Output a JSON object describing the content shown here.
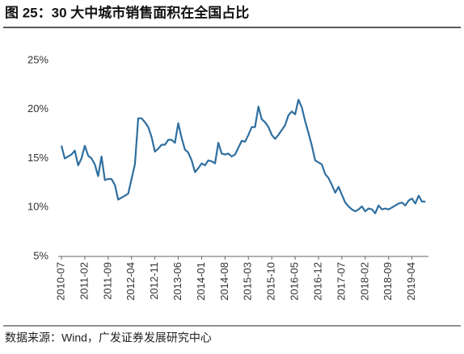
{
  "chart_data": {
    "type": "line",
    "title": "图 25：30 大中城市销售面积在全国占比",
    "source": "数据来源：Wind，广发证券发展研究中心",
    "categories": [
      "2010-07",
      null,
      null,
      null,
      null,
      null,
      null,
      "2011-02",
      null,
      null,
      null,
      null,
      null,
      null,
      "2011-09",
      null,
      null,
      null,
      null,
      null,
      null,
      "2012-04",
      null,
      null,
      null,
      null,
      null,
      null,
      "2012-11",
      null,
      null,
      null,
      null,
      null,
      null,
      "2013-06",
      null,
      null,
      null,
      null,
      null,
      null,
      "2014-01",
      null,
      null,
      null,
      null,
      null,
      null,
      "2014-08",
      null,
      null,
      null,
      null,
      null,
      null,
      "2015-03",
      null,
      null,
      null,
      null,
      null,
      null,
      "2015-10",
      null,
      null,
      null,
      null,
      null,
      null,
      "2016-05",
      null,
      null,
      null,
      null,
      null,
      null,
      "2016-12",
      null,
      null,
      null,
      null,
      null,
      null,
      "2017-07",
      null,
      null,
      null,
      null,
      null,
      null,
      "2018-02",
      null,
      null,
      null,
      null,
      null,
      null,
      "2018-09",
      null,
      null,
      null,
      null,
      null,
      null,
      "2019-04",
      null,
      null,
      null,
      null
    ],
    "series": [
      {
        "color": "#2f6f9f",
        "values": [
          16.3,
          15.0,
          15.2,
          15.4,
          15.8,
          14.3,
          15.0,
          16.3,
          15.3,
          15.0,
          14.4,
          13.2,
          15.2,
          12.8,
          12.9,
          12.9,
          12.3,
          10.8,
          11.0,
          11.2,
          11.4,
          12.9,
          14.4,
          19.1,
          19.1,
          18.7,
          18.2,
          17.2,
          15.7,
          16.0,
          16.4,
          16.4,
          16.9,
          16.9,
          16.6,
          18.6,
          17.1,
          15.9,
          15.6,
          14.8,
          13.6,
          14.0,
          14.5,
          14.3,
          14.8,
          14.7,
          14.5,
          16.6,
          15.5,
          15.4,
          15.5,
          15.2,
          15.4,
          16.1,
          16.8,
          16.7,
          17.4,
          18.2,
          18.2,
          20.3,
          19.0,
          18.7,
          18.2,
          17.4,
          17.0,
          17.4,
          17.9,
          18.4,
          19.4,
          19.8,
          19.5,
          21.0,
          20.2,
          18.8,
          17.6,
          16.3,
          14.8,
          14.6,
          14.4,
          13.4,
          13.0,
          12.3,
          11.5,
          12.1,
          11.3,
          10.5,
          10.1,
          9.8,
          9.6,
          9.8,
          10.1,
          9.6,
          9.9,
          9.8,
          9.4,
          10.2,
          9.8,
          9.9,
          9.8,
          10.0,
          10.2,
          10.4,
          10.5,
          10.2,
          10.7,
          10.9,
          10.4,
          11.2,
          10.6,
          10.6
        ]
      }
    ],
    "ylim": [
      5,
      25
    ],
    "yticks": [
      {
        "value": 5,
        "label": "5%"
      },
      {
        "value": 10,
        "label": "10%"
      },
      {
        "value": 15,
        "label": "15%"
      },
      {
        "value": 20,
        "label": "20%"
      },
      {
        "value": 25,
        "label": "25%"
      }
    ]
  }
}
